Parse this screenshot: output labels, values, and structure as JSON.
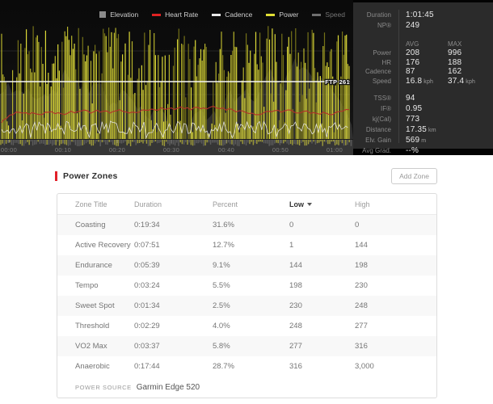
{
  "chart": {
    "legend": [
      {
        "label": "Elevation",
        "color": "#8a8a8a",
        "type": "square",
        "enabled": true
      },
      {
        "label": "Heart Rate",
        "color": "#e02222",
        "type": "line",
        "enabled": true
      },
      {
        "label": "Cadence",
        "color": "#e8e8e8",
        "type": "line",
        "enabled": true
      },
      {
        "label": "Power",
        "color": "#e0de34",
        "type": "line",
        "enabled": true
      },
      {
        "label": "Speed",
        "color": "#6f6f6f",
        "type": "line",
        "enabled": false
      }
    ],
    "ftp_label": "FTP 261",
    "x_ticks": [
      "00:00",
      "00:10",
      "00:20",
      "00:30",
      "00:40",
      "00:50",
      "01:00"
    ],
    "colors": {
      "power_bright": "#dcd938",
      "power_mid": "#b7b42c",
      "power_dark": "#757218",
      "heart_rate": "#b5302a",
      "cadence": "#e4e4e4",
      "elevation": "#4f4f4f",
      "ftp_line": "#f5f5f5",
      "mini_yellow": "#a09d3a",
      "mini_gray": "#5d5d5d"
    }
  },
  "stats": {
    "duration": {
      "label": "Duration",
      "value": "1:01:45"
    },
    "np": {
      "label": "NP®",
      "value": "249"
    },
    "avg_header": "AVG",
    "max_header": "MAX",
    "rows": [
      {
        "label": "Power",
        "avg": "208",
        "max": "996"
      },
      {
        "label": "HR",
        "avg": "176",
        "max": "188"
      },
      {
        "label": "Cadence",
        "avg": "87",
        "max": "162"
      },
      {
        "label": "Speed",
        "avg": "16.8",
        "avg_unit": "kph",
        "max": "37.4",
        "max_unit": "kph"
      }
    ],
    "extras": [
      {
        "label": "TSS®",
        "value": "94"
      },
      {
        "label": "IF®",
        "value": "0.95"
      },
      {
        "label": "kj(Cal)",
        "value": "773"
      },
      {
        "label": "Distance",
        "value": "17.35",
        "unit": "km"
      },
      {
        "label": "Elv. Gain",
        "value": "569",
        "unit": "m"
      },
      {
        "label": "Avg Grad.",
        "value": "--%"
      }
    ]
  },
  "power_zones": {
    "title": "Power Zones",
    "add_button": "Add Zone",
    "columns": {
      "title": "Zone Title",
      "duration": "Duration",
      "percent": "Percent",
      "low": "Low",
      "high": "High"
    },
    "sort_column": "Low",
    "rows": [
      {
        "title": "Coasting",
        "duration": "0:19:34",
        "percent": "31.6%",
        "low": "0",
        "high": "0"
      },
      {
        "title": "Active Recovery",
        "duration": "0:07:51",
        "percent": "12.7%",
        "low": "1",
        "high": "144"
      },
      {
        "title": "Endurance",
        "duration": "0:05:39",
        "percent": "9.1%",
        "low": "144",
        "high": "198"
      },
      {
        "title": "Tempo",
        "duration": "0:03:24",
        "percent": "5.5%",
        "low": "198",
        "high": "230"
      },
      {
        "title": "Sweet Spot",
        "duration": "0:01:34",
        "percent": "2.5%",
        "low": "230",
        "high": "248"
      },
      {
        "title": "Threshold",
        "duration": "0:02:29",
        "percent": "4.0%",
        "low": "248",
        "high": "277"
      },
      {
        "title": "VO2 Max",
        "duration": "0:03:37",
        "percent": "5.8%",
        "low": "277",
        "high": "316"
      },
      {
        "title": "Anaerobic",
        "duration": "0:17:44",
        "percent": "28.7%",
        "low": "316",
        "high": "3,000"
      }
    ],
    "footer_label": "POWER SOURCE",
    "footer_value": "Garmin Edge 520"
  }
}
